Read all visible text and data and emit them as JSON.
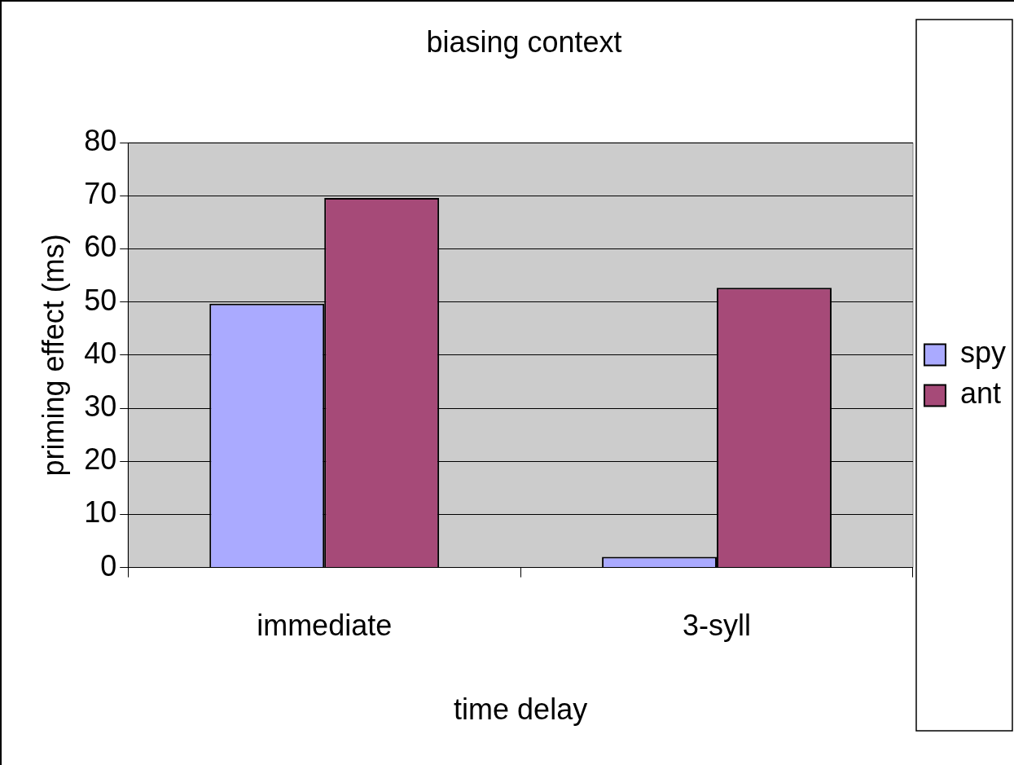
{
  "chart_data": {
    "type": "bar",
    "title": "biasing context",
    "xlabel": "time delay",
    "ylabel": "priming effect (ms)",
    "categories": [
      "immediate",
      "3-syll"
    ],
    "series": [
      {
        "name": "spy",
        "color": "#aaaaff",
        "values": [
          49.7,
          2
        ]
      },
      {
        "name": "ant",
        "color": "#a64a78",
        "values": [
          69.6,
          52.7
        ]
      }
    ],
    "ylim": [
      0,
      80
    ],
    "yticks": [
      0,
      10,
      20,
      30,
      40,
      50,
      60,
      70,
      80
    ],
    "grid": "y",
    "legend": "right"
  }
}
